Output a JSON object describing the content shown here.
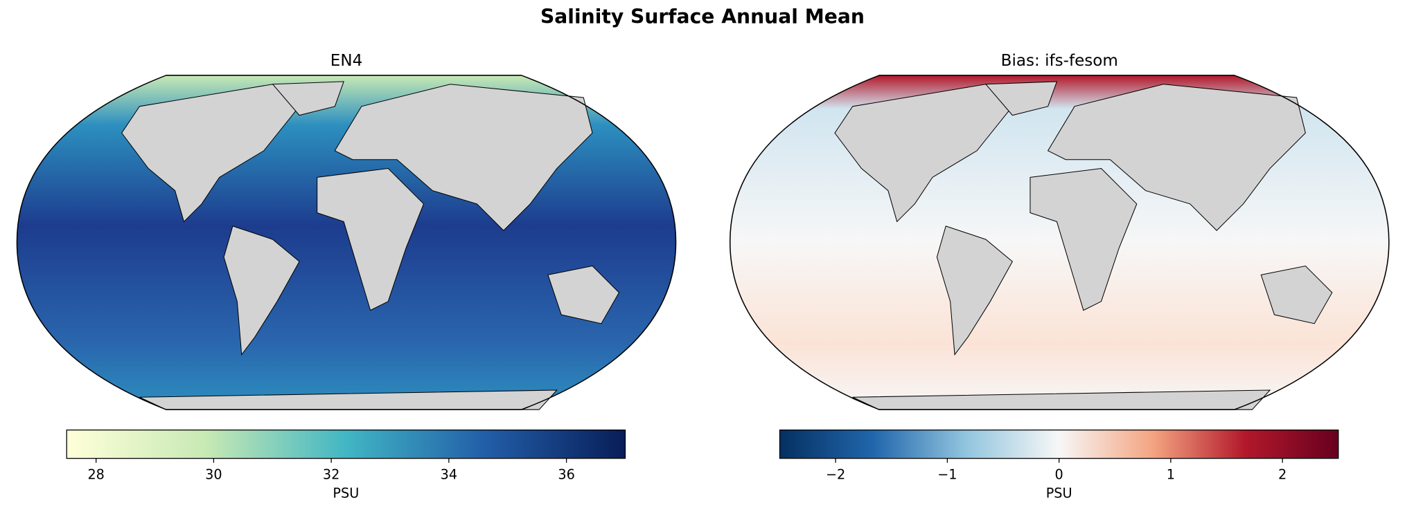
{
  "title": "Salinity Surface Annual Mean",
  "chart_data": [
    {
      "type": "map",
      "title": "EN4",
      "colorbar": {
        "label": "PSU",
        "lim": [
          27.5,
          37
        ],
        "ticks": [
          28,
          30,
          32,
          34,
          36
        ],
        "colors": [
          "#ffffd9",
          "#c7e9b4",
          "#41b6c4",
          "#225ea8",
          "#081d58"
        ]
      }
    },
    {
      "type": "map",
      "title": "Bias: ifs-fesom",
      "colorbar": {
        "label": "PSU",
        "lim": [
          -2.5,
          2.5
        ],
        "ticks": [
          {
            "value": -2,
            "label": "−2"
          },
          {
            "value": -1,
            "label": "−1"
          },
          0,
          1,
          2
        ],
        "colors": [
          "#053061",
          "#2166ac",
          "#92c5de",
          "#f7f7f7",
          "#f4a582",
          "#b2182b",
          "#67001f"
        ]
      }
    }
  ]
}
